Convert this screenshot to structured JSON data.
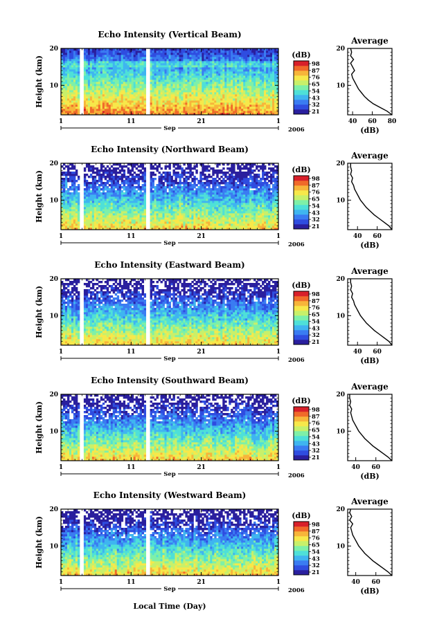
{
  "colors": {
    "colormap": [
      "#2a1f9e",
      "#2f4de0",
      "#3a7cf2",
      "#3fb5f0",
      "#4ee0d8",
      "#7ef0a8",
      "#c8f06a",
      "#f7e84a",
      "#f7b53a",
      "#f06a2a",
      "#d8202a"
    ],
    "gap": "#ffffff",
    "profile_line": "#000000"
  },
  "common": {
    "x_ticks": [
      "1",
      "11",
      "21",
      "1"
    ],
    "x_month": "Sep",
    "x_year": "2006",
    "y_label": "Height (km)",
    "y_ticks": [
      "20",
      "10"
    ],
    "cb_unit": "(dB)",
    "avg_title": "Average",
    "avg_unit": "(dB)",
    "avg_y_ticks": [
      "20",
      "10"
    ],
    "bottom_xlabel": "Local Time (Day)"
  },
  "chart_data": [
    {
      "type": "heatmap",
      "title": "Echo Intensity (Vertical Beam)",
      "xlabel": "",
      "ylabel": "Height (km)",
      "xlim_days": [
        1,
        32
      ],
      "ylim_km": [
        2,
        20
      ],
      "gaps_days": [
        [
          3.8,
          4.2
        ],
        [
          13.2,
          13.6
        ]
      ],
      "colorbar": {
        "unit": "(dB)",
        "ticks": [
          "98",
          "87",
          "76",
          "65",
          "54",
          "43",
          "32",
          "21"
        ],
        "range": [
          21,
          98
        ]
      },
      "profile": {
        "title": "Average",
        "xlabel": "(dB)",
        "x_ticks": [
          "40",
          "60",
          "80"
        ],
        "xlim": [
          35,
          80
        ],
        "heights_km": [
          2,
          3,
          4,
          5,
          6,
          7,
          8,
          9,
          10,
          11,
          12,
          13,
          14,
          15,
          16,
          17,
          18,
          19,
          20
        ],
        "values_db": [
          80,
          75,
          68,
          61,
          56,
          52,
          49,
          46,
          44,
          42,
          40,
          39,
          42,
          40,
          38,
          41,
          38,
          39,
          38
        ]
      }
    },
    {
      "type": "heatmap",
      "title": "Echo Intensity (Northward Beam)",
      "xlabel": "",
      "ylabel": "Height (km)",
      "xlim_days": [
        1,
        32
      ],
      "ylim_km": [
        2,
        20
      ],
      "gaps_days": [
        [
          3.8,
          4.2
        ],
        [
          13.2,
          13.6
        ]
      ],
      "colorbar": {
        "unit": "(dB)",
        "ticks": [
          "98",
          "87",
          "76",
          "65",
          "54",
          "43",
          "32",
          "21"
        ],
        "range": [
          21,
          98
        ]
      },
      "profile": {
        "title": "Average",
        "xlabel": "(dB)",
        "x_ticks": [
          "40",
          "60"
        ],
        "xlim": [
          30,
          75
        ],
        "heights_km": [
          2,
          3,
          4,
          5,
          6,
          7,
          8,
          9,
          10,
          11,
          12,
          13,
          14,
          15,
          16,
          17,
          18,
          19,
          20
        ],
        "values_db": [
          75,
          72,
          67,
          62,
          57,
          53,
          49,
          46,
          43,
          41,
          39,
          37,
          36,
          34,
          35,
          33,
          34,
          33,
          33
        ]
      }
    },
    {
      "type": "heatmap",
      "title": "Echo Intensity (Eastward Beam)",
      "xlabel": "",
      "ylabel": "Height (km)",
      "xlim_days": [
        1,
        32
      ],
      "ylim_km": [
        2,
        20
      ],
      "gaps_days": [
        [
          3.8,
          4.2
        ],
        [
          13.2,
          13.6
        ]
      ],
      "colorbar": {
        "unit": "(dB)",
        "ticks": [
          "98",
          "87",
          "76",
          "65",
          "54",
          "43",
          "32",
          "21"
        ],
        "range": [
          21,
          98
        ]
      },
      "profile": {
        "title": "Average",
        "xlabel": "(dB)",
        "x_ticks": [
          "40",
          "60"
        ],
        "xlim": [
          30,
          75
        ],
        "heights_km": [
          2,
          3,
          4,
          5,
          6,
          7,
          8,
          9,
          10,
          11,
          12,
          13,
          14,
          15,
          16,
          17,
          18,
          19,
          20
        ],
        "values_db": [
          75,
          72,
          67,
          62,
          57,
          53,
          49,
          46,
          43,
          41,
          39,
          37,
          36,
          34,
          35,
          33,
          34,
          33,
          33
        ]
      }
    },
    {
      "type": "heatmap",
      "title": "Echo Intensity (Southward Beam)",
      "xlabel": "",
      "ylabel": "Height (km)",
      "xlim_days": [
        1,
        32
      ],
      "ylim_km": [
        2,
        20
      ],
      "gaps_days": [
        [
          3.8,
          4.2
        ],
        [
          13.2,
          13.6
        ]
      ],
      "colorbar": {
        "unit": "(dB)",
        "ticks": [
          "98",
          "87",
          "76",
          "65",
          "54",
          "43",
          "32",
          "21"
        ],
        "range": [
          21,
          98
        ]
      },
      "profile": {
        "title": "Average",
        "xlabel": "(dB)",
        "x_ticks": [
          "40",
          "60"
        ],
        "xlim": [
          32,
          76
        ],
        "heights_km": [
          2,
          3,
          4,
          5,
          6,
          7,
          8,
          9,
          10,
          11,
          12,
          13,
          14,
          15,
          16,
          17,
          18,
          19,
          20
        ],
        "values_db": [
          76,
          72,
          67,
          62,
          57,
          53,
          49,
          46,
          43,
          41,
          39,
          37,
          36,
          35,
          36,
          34,
          35,
          34,
          34
        ]
      }
    },
    {
      "type": "heatmap",
      "title": "Echo Intensity (Westward Beam)",
      "xlabel": "Local Time (Day)",
      "ylabel": "Height (km)",
      "xlim_days": [
        1,
        32
      ],
      "ylim_km": [
        2,
        20
      ],
      "gaps_days": [
        [
          3.8,
          4.2
        ],
        [
          13.2,
          13.6
        ]
      ],
      "colorbar": {
        "unit": "(dB)",
        "ticks": [
          "98",
          "87",
          "76",
          "65",
          "54",
          "43",
          "32",
          "21"
        ],
        "range": [
          21,
          98
        ]
      },
      "profile": {
        "title": "Average",
        "xlabel": "(dB)",
        "x_ticks": [
          "40",
          "60"
        ],
        "xlim": [
          32,
          76
        ],
        "heights_km": [
          2,
          3,
          4,
          5,
          6,
          7,
          8,
          9,
          10,
          11,
          12,
          13,
          14,
          15,
          16,
          17,
          18,
          19,
          20
        ],
        "values_db": [
          76,
          72,
          67,
          62,
          57,
          53,
          49,
          46,
          43,
          41,
          39,
          37,
          36,
          35,
          37,
          34,
          36,
          34,
          35
        ]
      }
    }
  ]
}
